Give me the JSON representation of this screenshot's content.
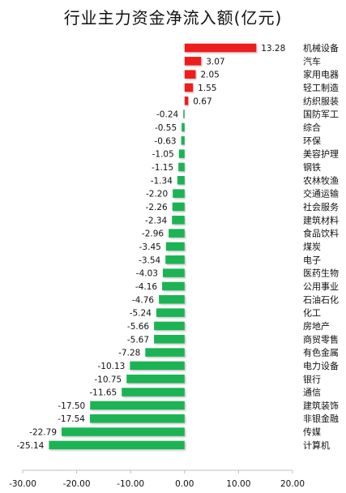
{
  "chart_data": {
    "type": "bar",
    "orientation": "horizontal",
    "title": "行业主力资金净流入额(亿元)",
    "xlabel": "",
    "ylabel": "",
    "xlim": [
      -30,
      20
    ],
    "ticks": [
      "-30.00",
      "-20.00",
      "-10.00",
      "0.00",
      "10.00",
      "20.00"
    ],
    "grid": false,
    "colors": {
      "positive": "#ee1c1c",
      "negative": "#1db355"
    },
    "categories": [
      "机械设备",
      "汽车",
      "家用电器",
      "轻工制造",
      "纺织服装",
      "国防军工",
      "综合",
      "环保",
      "美容护理",
      "钢铁",
      "农林牧渔",
      "交通运输",
      "社会服务",
      "建筑材料",
      "食品饮料",
      "煤炭",
      "电子",
      "医药生物",
      "公用事业",
      "石油石化",
      "化工",
      "房地产",
      "商贸零售",
      "有色金属",
      "电力设备",
      "银行",
      "通信",
      "建筑装饰",
      "非银金融",
      "传媒",
      "计算机"
    ],
    "values": [
      13.28,
      3.07,
      2.05,
      1.55,
      0.67,
      -0.24,
      -0.55,
      -0.63,
      -1.05,
      -1.15,
      -1.34,
      -2.2,
      -2.26,
      -2.34,
      -2.96,
      -3.45,
      -3.54,
      -4.03,
      -4.16,
      -4.76,
      -5.24,
      -5.66,
      -5.67,
      -7.28,
      -10.13,
      -10.75,
      -11.65,
      -17.5,
      -17.54,
      -22.79,
      -25.14
    ],
    "value_labels": [
      "13.28",
      "3.07",
      "2.05",
      "1.55",
      "0.67",
      "-0.24",
      "-0.55",
      "-0.63",
      "-1.05",
      "-1.15",
      "-1.34",
      "-2.20",
      "-2.26",
      "-2.34",
      "-2.96",
      "-3.45",
      "-3.54",
      "-4.03",
      "-4.16",
      "-4.76",
      "-5.24",
      "-5.66",
      "-5.67",
      "-7.28",
      "-10.13",
      "-10.75",
      "-11.65",
      "-17.50",
      "-17.54",
      "-22.79",
      "-25.14"
    ]
  }
}
